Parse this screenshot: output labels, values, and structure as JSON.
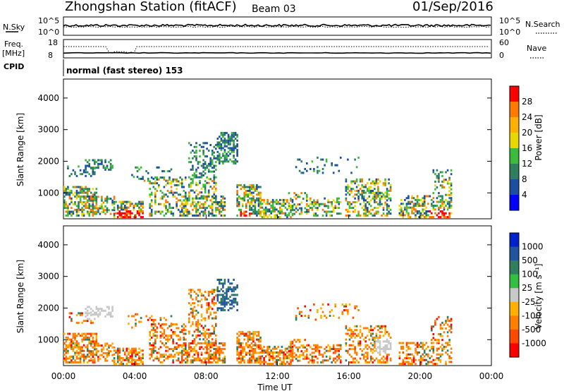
{
  "header": {
    "station": "Zhongshan Station (fitACF)",
    "beam": "Beam 03",
    "date": "01/Sep/2016"
  },
  "panels": {
    "nsky_label": "N.Sky",
    "nsky_ticks": [
      "10^5",
      "10^0"
    ],
    "nsearch_label": "N.Search",
    "nsearch_ticks": [
      "10^5",
      "10^0"
    ],
    "freq_label_1": "Freq.",
    "freq_label_2": "[MHz]",
    "freq_ticks": [
      "18",
      "8"
    ],
    "nave_label": "Nave",
    "nave_ticks": [
      "60",
      "0"
    ],
    "cpid_label": "CPID",
    "cpid_text": "normal (fast stereo) 153"
  },
  "chart_data": [
    {
      "type": "heatmap",
      "name": "power",
      "ylabel": "Slant Range [km]",
      "yticks": [
        "4000",
        "3000",
        "2000",
        "1000"
      ],
      "ylim": [
        180,
        4600
      ],
      "xticks": [
        "00:00",
        "04:00",
        "08:00",
        "12:00",
        "16:00",
        "20:00",
        "00:00"
      ],
      "xlim_hours": [
        0,
        24
      ],
      "colorbar": {
        "label": "Power [dB]",
        "ticks": [
          "28",
          "24",
          "20",
          "16",
          "12",
          "8",
          "4"
        ],
        "colors": [
          "#ff0000",
          "#ff7a00",
          "#ffb000",
          "#e8d800",
          "#3cba3c",
          "#2f7f5f",
          "#1d4fa0",
          "#0000ff"
        ]
      }
    },
    {
      "type": "heatmap",
      "name": "velocity",
      "ylabel": "Slant Range [km]",
      "yticks": [
        "4000",
        "3000",
        "2000",
        "1000"
      ],
      "ylim": [
        180,
        4600
      ],
      "xticks": [
        "00:00",
        "04:00",
        "08:00",
        "12:00",
        "16:00",
        "20:00",
        "00:00"
      ],
      "xlim_hours": [
        0,
        24
      ],
      "xlabel": "Time UT",
      "colorbar": {
        "label": "Velocity [m s⁻¹]",
        "ticks": [
          "1000",
          "500",
          "100",
          "25",
          "-25",
          "-100",
          "-500",
          "-1000"
        ],
        "colors": [
          "#0022cc",
          "#2255a0",
          "#2f7f5f",
          "#33c040",
          "#c8c8c8",
          "#ffb000",
          "#ff8000",
          "#ff4800",
          "#ff0000"
        ]
      }
    }
  ]
}
